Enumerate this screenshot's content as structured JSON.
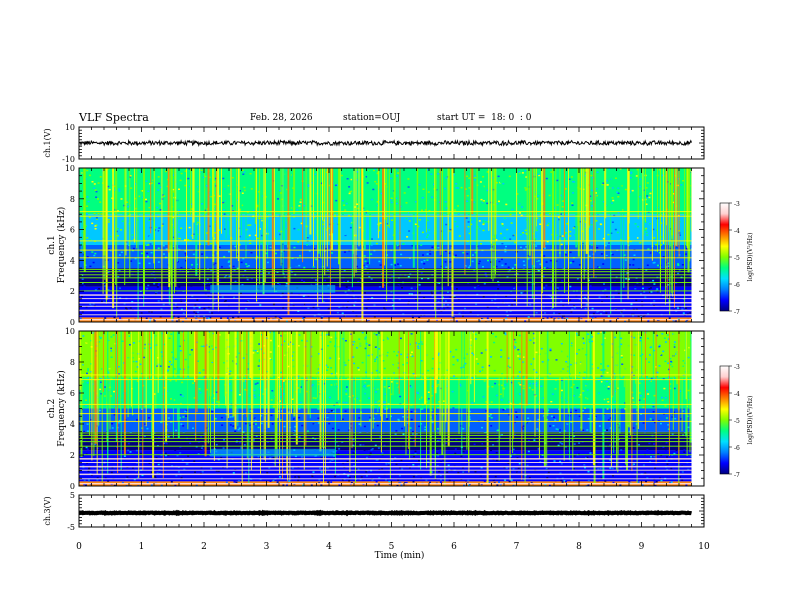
{
  "header": {
    "title": "VLF Spectra",
    "date": "Feb. 28, 2026",
    "station": "station=OUJ",
    "start_ut": "start UT =  18: 0  : 0"
  },
  "chart_data": [
    {
      "id": "ch1_waveform",
      "type": "line",
      "ylabel": "ch.1(V)",
      "ylim": [
        -10,
        10
      ],
      "yticks": [
        "10",
        "-10"
      ],
      "xlim": [
        0,
        10
      ],
      "signal_mean": 0,
      "signal_amplitude": 1.6
    },
    {
      "id": "ch1_spectrogram",
      "type": "heatmap",
      "ylabel": "ch.1 Frequency (kHz)",
      "ylabel_lines": [
        "ch.1",
        "Frequency  (kHz)"
      ],
      "ylim": [
        0,
        10
      ],
      "yticks": [
        "0",
        "2",
        "4",
        "6",
        "8",
        "10"
      ],
      "xlim": [
        0,
        10
      ],
      "colorbar": {
        "label": "log(PSD)(V²/Hz)",
        "range": [
          -7,
          -3
        ],
        "ticks": [
          "-3",
          "-4",
          "-5",
          "-6",
          "-7"
        ]
      }
    },
    {
      "id": "ch2_spectrogram",
      "type": "heatmap",
      "ylabel": "ch.2 Frequency (kHz)",
      "ylabel_lines": [
        "ch.2",
        "Frequency  (kHz)"
      ],
      "ylim": [
        0,
        10
      ],
      "yticks": [
        "0",
        "2",
        "4",
        "6",
        "8",
        "10"
      ],
      "xlim": [
        0,
        10
      ],
      "colorbar": {
        "label": "log(PSD)(V²/Hz)",
        "range": [
          -7,
          -3
        ],
        "ticks": [
          "-3",
          "-4",
          "-5",
          "-6",
          "-7"
        ]
      }
    },
    {
      "id": "ch3_waveform",
      "type": "line",
      "ylabel": "ch.3(V)",
      "ylim": [
        -5,
        5
      ],
      "yticks": [
        "5",
        "-5"
      ],
      "xlim": [
        0,
        10
      ],
      "signal_mean": -0.6,
      "signal_amplitude": 0.15
    }
  ],
  "xaxis": {
    "label": "Time  (min)",
    "ticks": [
      "0",
      "1",
      "2",
      "3",
      "4",
      "5",
      "6",
      "7",
      "8",
      "9",
      "10"
    ],
    "data_end": 9.8
  },
  "colors": {
    "colormap": [
      "#00007f",
      "#0000ff",
      "#0060ff",
      "#00c8ff",
      "#00ff80",
      "#80ff00",
      "#ffff00",
      "#ff8000",
      "#ff0000",
      "#ffe0e0"
    ],
    "trace": "#000000"
  }
}
